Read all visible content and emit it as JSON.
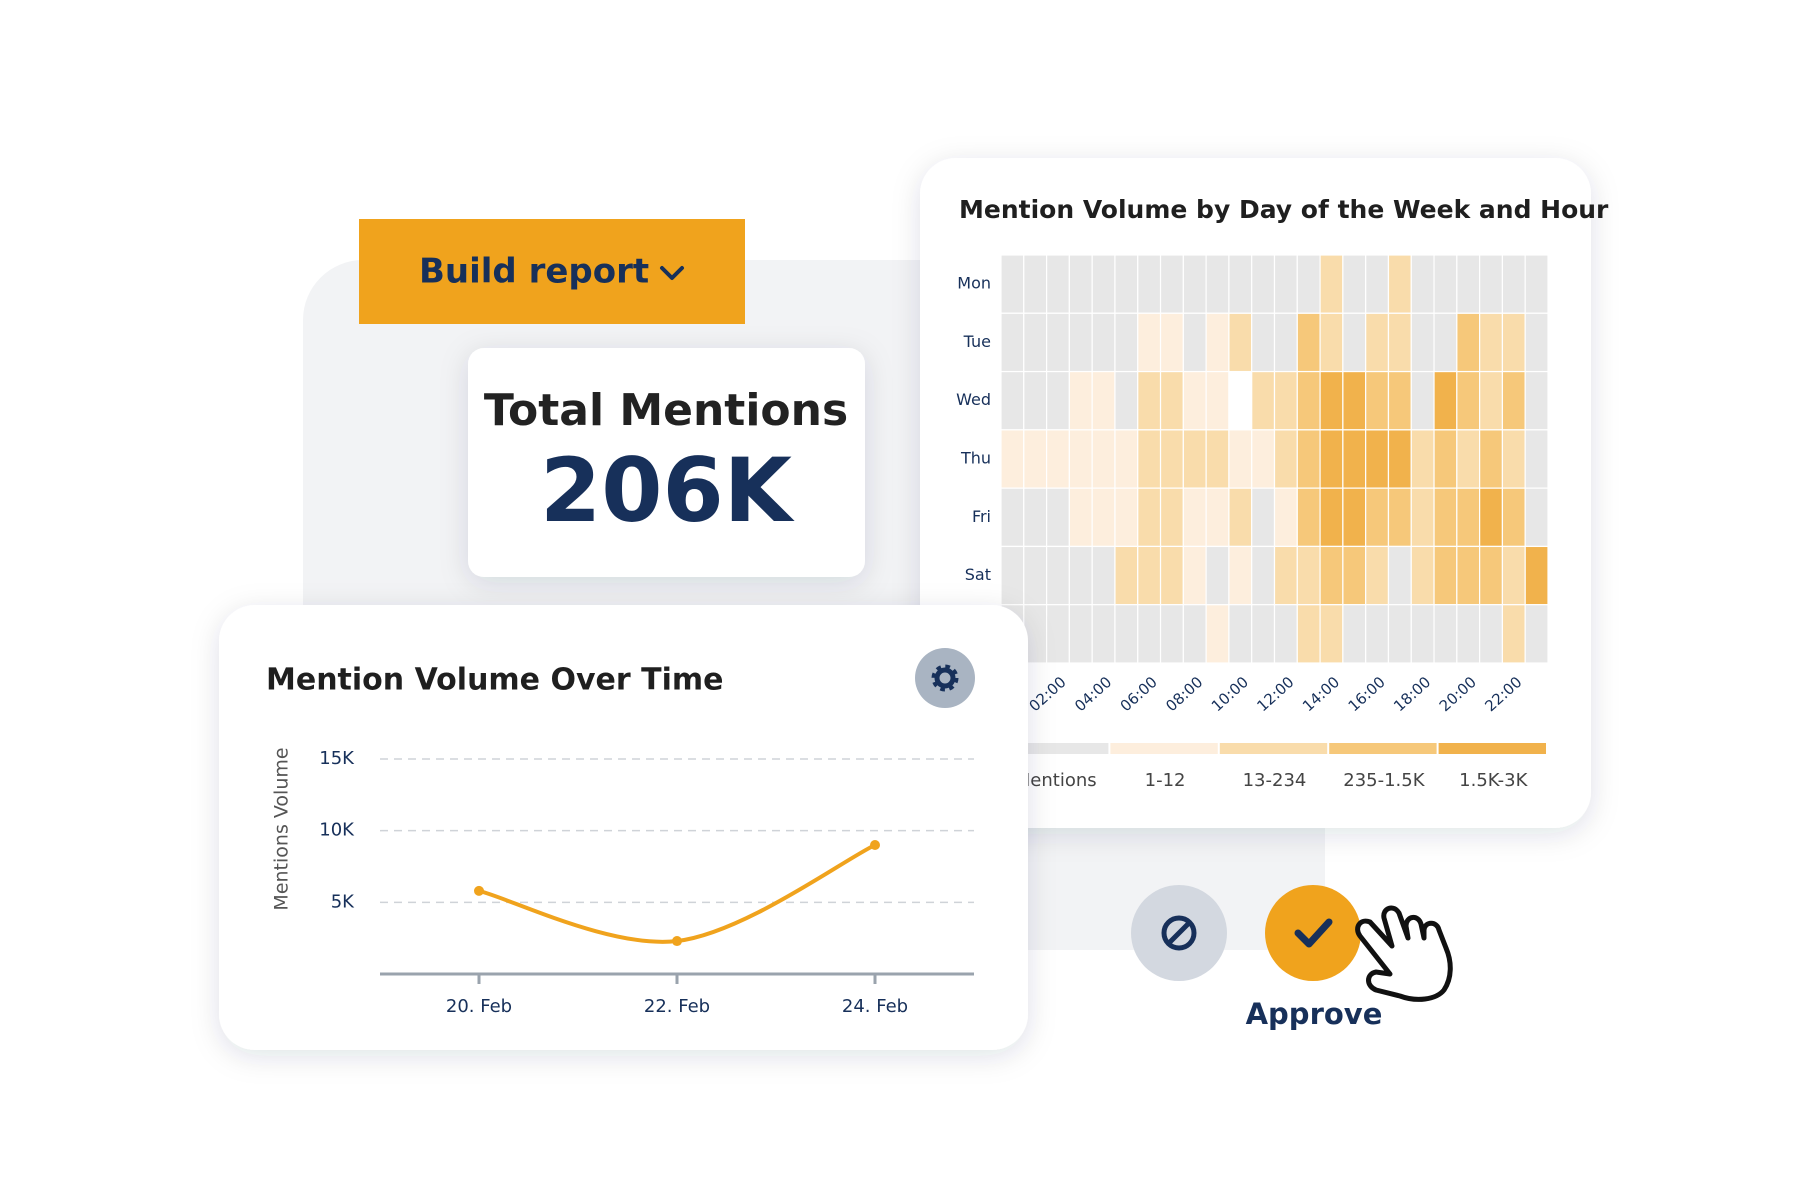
{
  "build_report": {
    "label": "Build report"
  },
  "total_mentions": {
    "title": "Total Mentions",
    "value": "206K"
  },
  "chart_data": [
    {
      "type": "line",
      "title": "Mention Volume Over Time",
      "y_label": "Mentions Volume",
      "categories": [
        "20. Feb",
        "22. Feb",
        "24. Feb"
      ],
      "values": [
        5800,
        2300,
        9000
      ],
      "color": "#f0a31d",
      "ylim": [
        0,
        15000
      ],
      "yticks": [
        {
          "value": 5000,
          "label": "5K"
        },
        {
          "value": 10000,
          "label": "10K"
        },
        {
          "value": 15000,
          "label": "15K"
        }
      ],
      "grid": true
    },
    {
      "type": "heatmap",
      "title": "Mention Volume by Day of the Week and Hour",
      "x": [
        null,
        null,
        "02:00",
        null,
        "04:00",
        null,
        "06:00",
        null,
        "08:00",
        null,
        "10:00",
        null,
        "12:00",
        null,
        "14:00",
        null,
        "16:00",
        null,
        "18:00",
        null,
        "20:00",
        null,
        "22:00",
        null
      ],
      "y": [
        "Mon",
        "Tue",
        "Wed",
        "Thu",
        "Fri",
        "Sat",
        null
      ],
      "values": [
        [
          0,
          0,
          0,
          0,
          0,
          0,
          0,
          0,
          0,
          0,
          0,
          0,
          0,
          0,
          2,
          0,
          0,
          2,
          0,
          0,
          0,
          0,
          0,
          0
        ],
        [
          0,
          0,
          0,
          0,
          0,
          0,
          1,
          1,
          0,
          1,
          2,
          0,
          0,
          3,
          2,
          0,
          2,
          2,
          0,
          0,
          3,
          2,
          2,
          0
        ],
        [
          0,
          0,
          0,
          1,
          1,
          0,
          2,
          2,
          1,
          1,
          null,
          2,
          2,
          3,
          4,
          4,
          3,
          3,
          0,
          4,
          3,
          2,
          3,
          0
        ],
        [
          1,
          1,
          1,
          1,
          1,
          1,
          2,
          2,
          2,
          2,
          1,
          1,
          2,
          3,
          4,
          4,
          4,
          4,
          2,
          3,
          2,
          3,
          2,
          0
        ],
        [
          0,
          0,
          0,
          1,
          1,
          1,
          2,
          2,
          1,
          1,
          2,
          0,
          1,
          3,
          4,
          4,
          3,
          3,
          2,
          3,
          3,
          4,
          3,
          0
        ],
        [
          0,
          0,
          0,
          0,
          0,
          2,
          2,
          2,
          1,
          0,
          1,
          0,
          2,
          2,
          3,
          3,
          2,
          0,
          2,
          3,
          3,
          3,
          2,
          4
        ],
        [
          0,
          0,
          0,
          0,
          0,
          0,
          0,
          0,
          0,
          1,
          0,
          0,
          0,
          2,
          2,
          0,
          0,
          0,
          0,
          0,
          0,
          0,
          2,
          0
        ]
      ],
      "null_color": "#ffffff",
      "legend": {
        "bins": [
          {
            "label": "Mentions",
            "color": "#e7e7e7"
          },
          {
            "label": "1-12",
            "color": "#fdeedd"
          },
          {
            "label": "13-234",
            "color": "#f9dcab"
          },
          {
            "label": "235-1.5K",
            "color": "#f6c87a"
          },
          {
            "label": "1.5K-3K",
            "color": "#f1b24c"
          }
        ]
      }
    }
  ],
  "actions": {
    "approve": "Approve"
  }
}
